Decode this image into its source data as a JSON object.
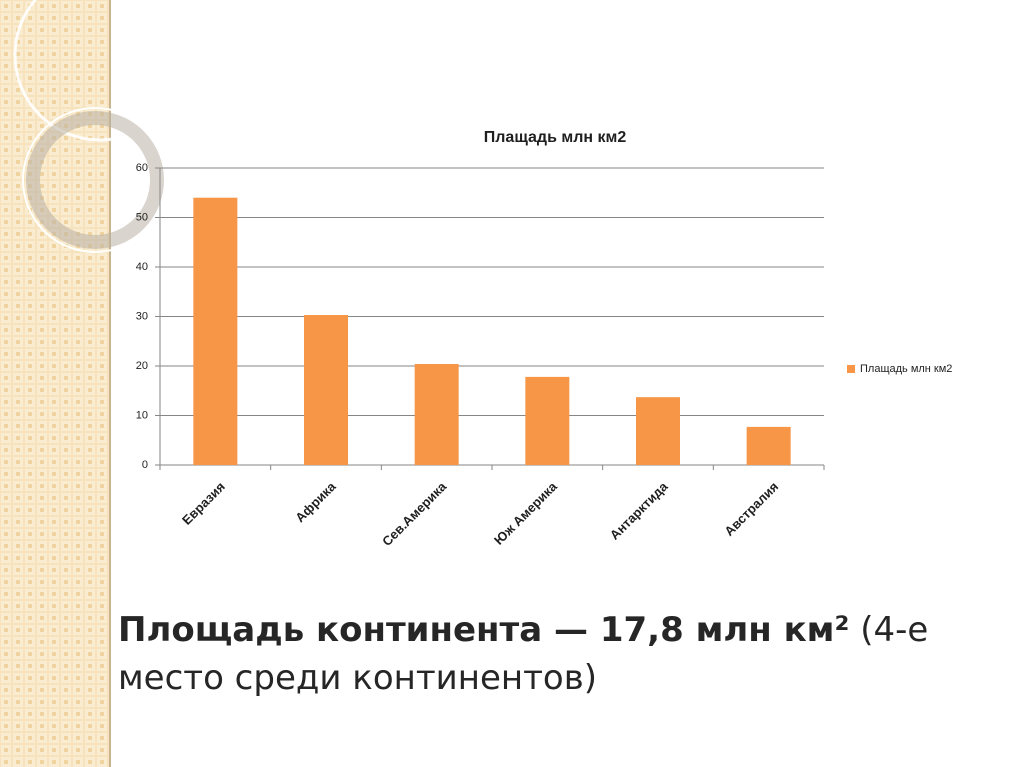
{
  "chart_data": {
    "type": "bar",
    "title": "Плащадь млн км2",
    "categories": [
      "Евразия",
      "Африка",
      "Сев.Америка",
      "Юж Америка",
      "Антарктида",
      "Австралия"
    ],
    "series": [
      {
        "name": "Плащадь млн км2",
        "color": "#f79646",
        "values": [
          54,
          30.3,
          20.4,
          17.8,
          13.7,
          7.7
        ]
      }
    ],
    "ylim": [
      0,
      60
    ],
    "yticks": [
      0,
      10,
      20,
      30,
      40,
      50,
      60
    ],
    "grid": true,
    "legend": "right"
  },
  "caption": {
    "bold": "Площадь континента — 17,8 млн км²",
    "normal": "(4-е место среди континентов)"
  }
}
